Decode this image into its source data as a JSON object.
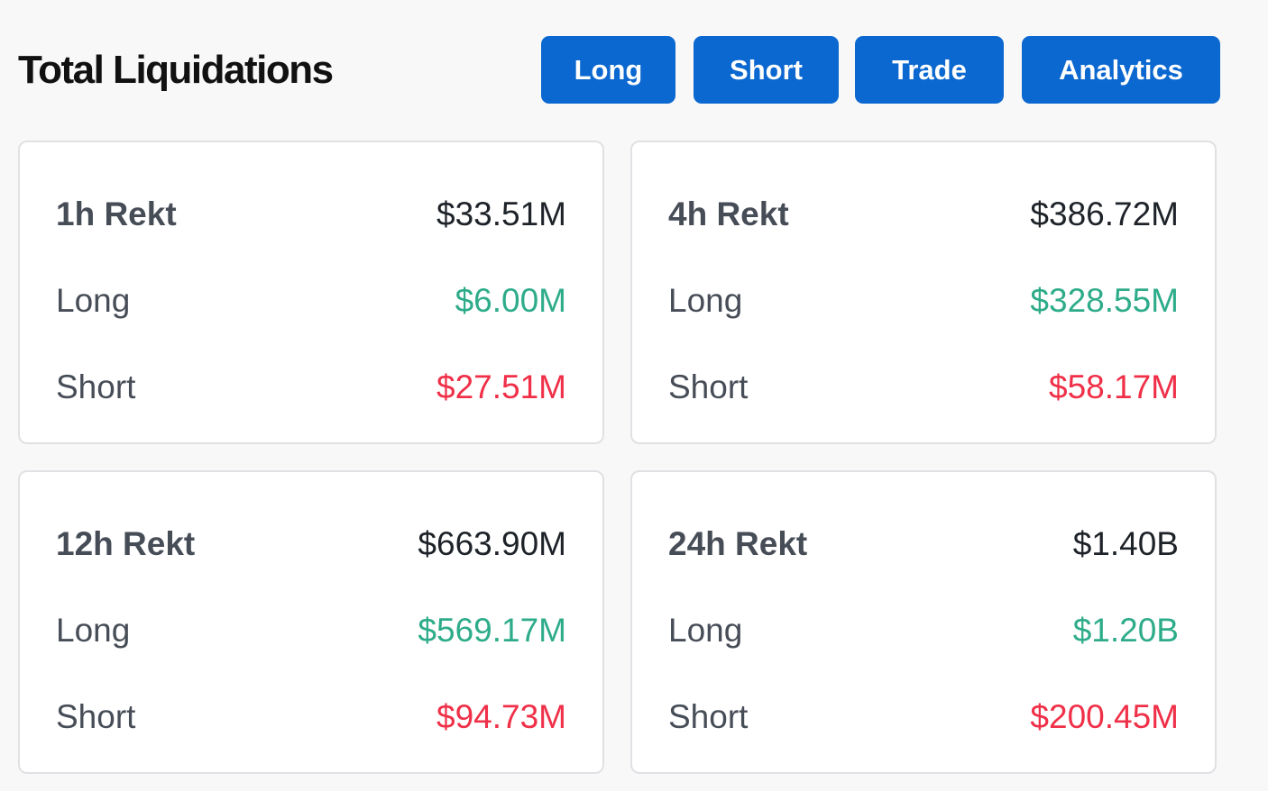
{
  "header": {
    "title": "Total Liquidations",
    "buttons": {
      "long": "Long",
      "short": "Short",
      "trade": "Trade",
      "analytics": "Analytics"
    }
  },
  "cards": [
    {
      "label": "1h Rekt",
      "total": "$33.51M",
      "long_label": "Long",
      "long": "$6.00M",
      "short_label": "Short",
      "short": "$27.51M"
    },
    {
      "label": "4h Rekt",
      "total": "$386.72M",
      "long_label": "Long",
      "long": "$328.55M",
      "short_label": "Short",
      "short": "$58.17M"
    },
    {
      "label": "12h Rekt",
      "total": "$663.90M",
      "long_label": "Long",
      "long": "$569.17M",
      "short_label": "Short",
      "short": "$94.73M"
    },
    {
      "label": "24h Rekt",
      "total": "$1.40B",
      "long_label": "Long",
      "long": "$1.20B",
      "short_label": "Short",
      "short": "$200.45M"
    }
  ],
  "colors": {
    "accent": "#0b68d0",
    "long": "#2eac8a",
    "short": "#ef3048",
    "background": "#f8f8f8"
  }
}
